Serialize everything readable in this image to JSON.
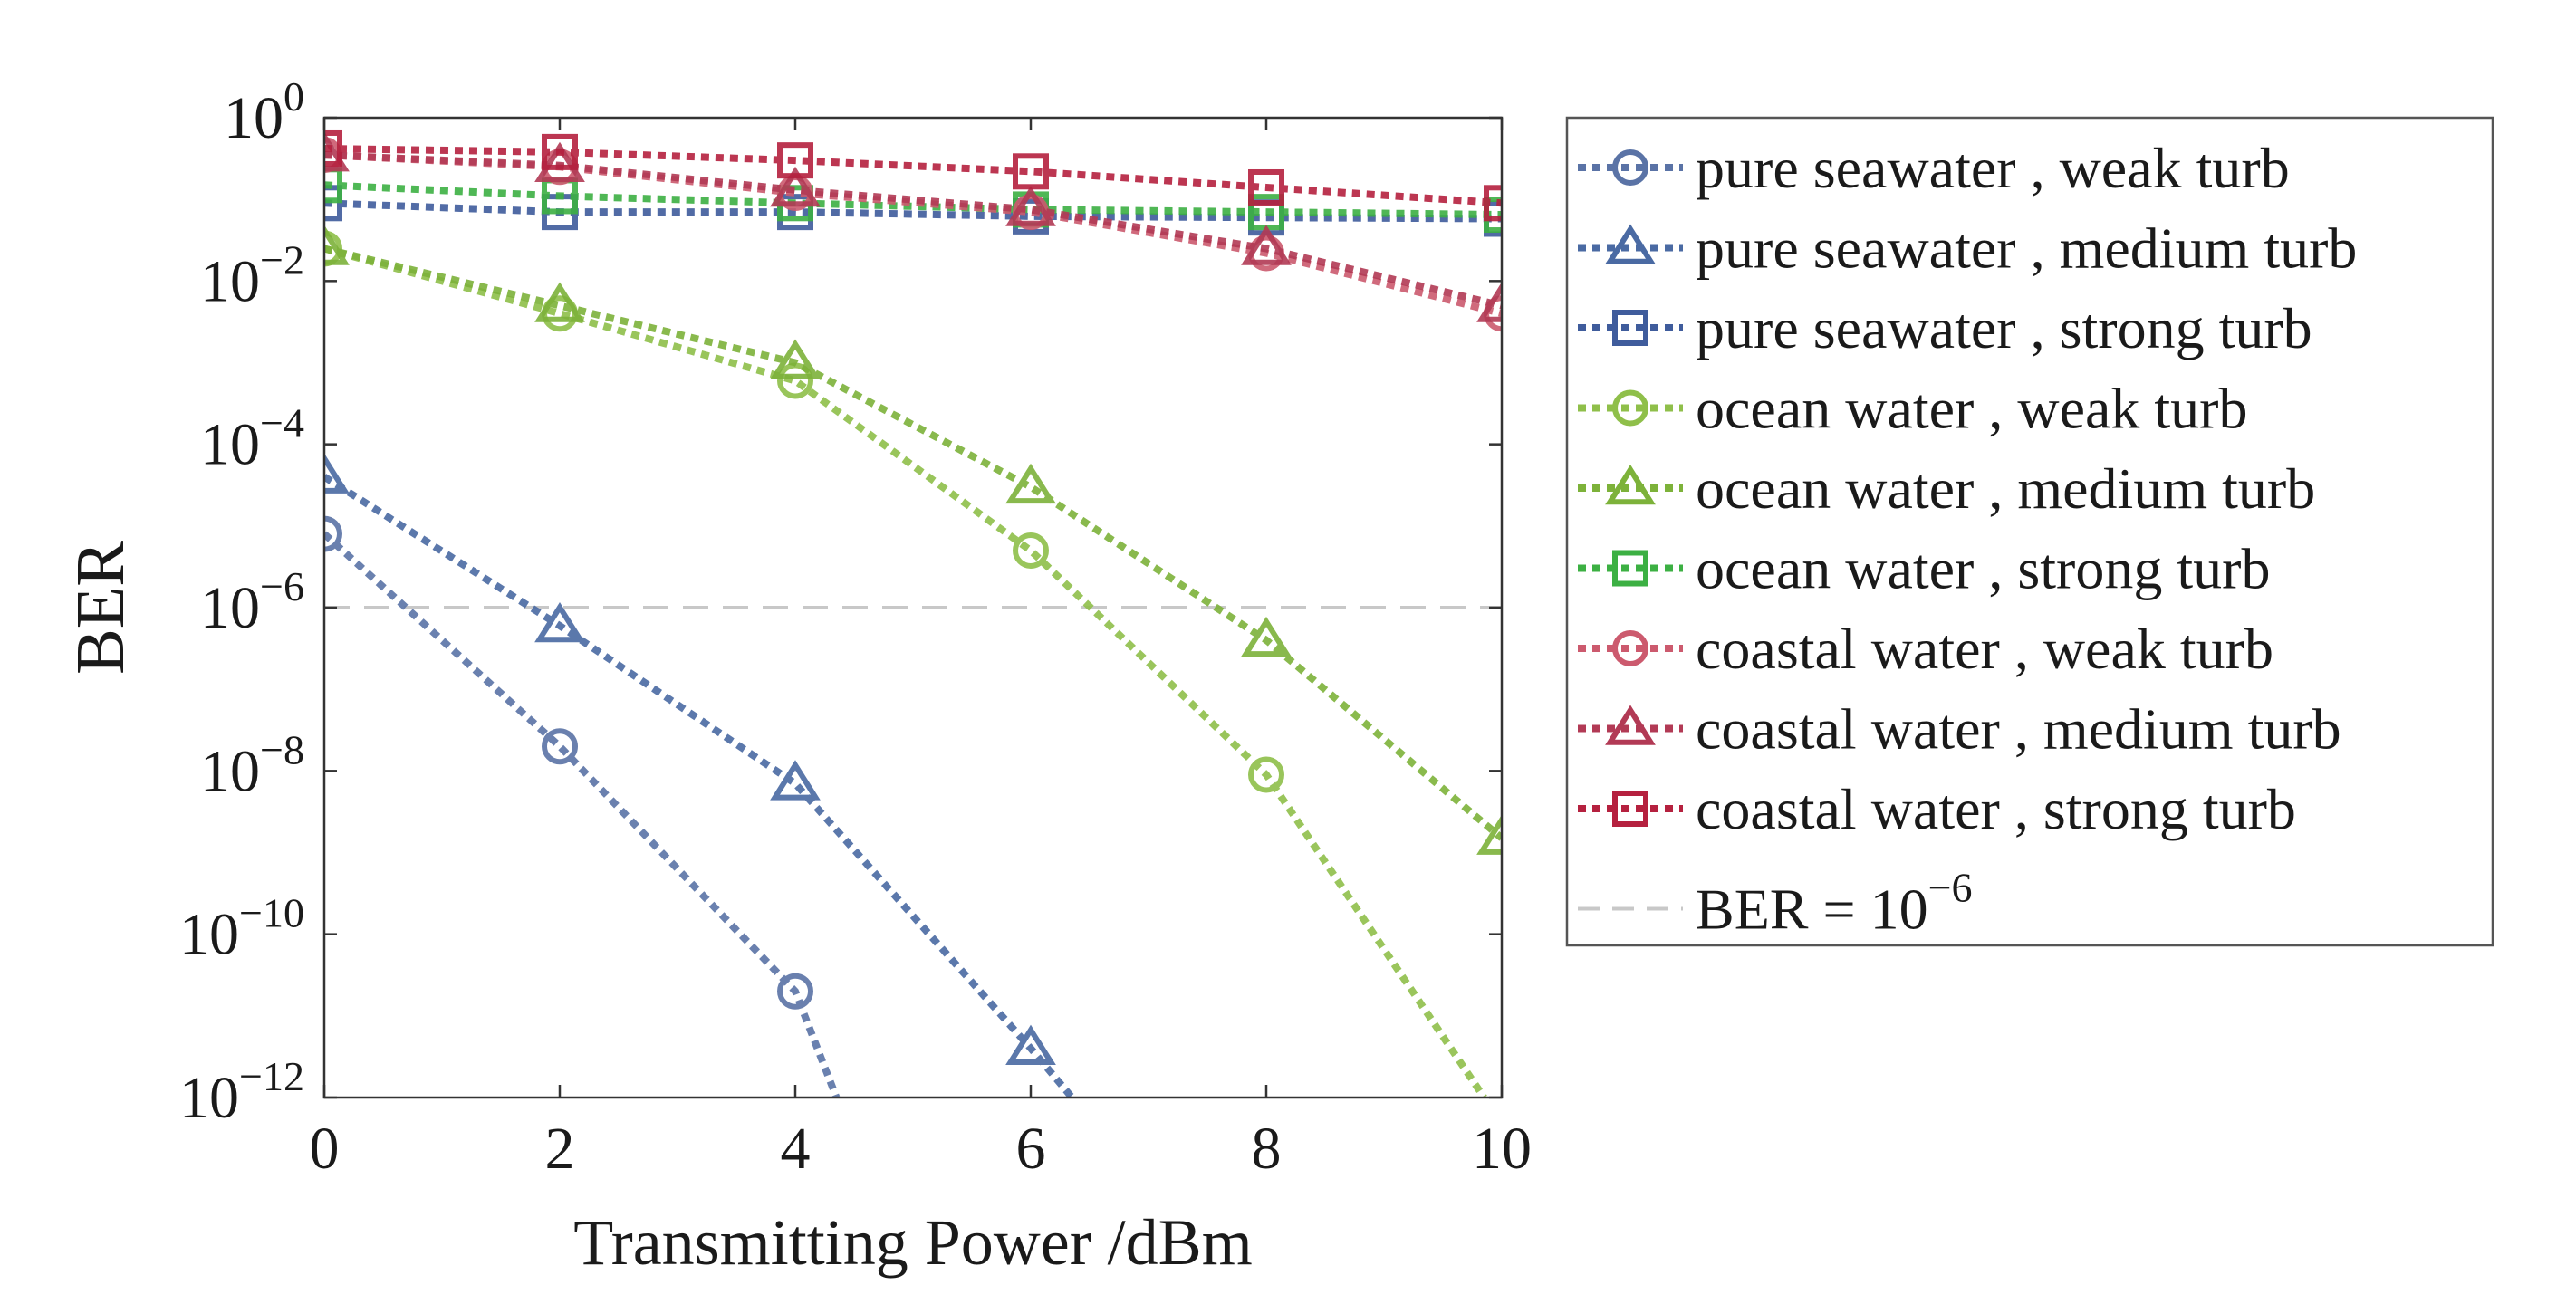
{
  "chart_data": {
    "type": "line",
    "title": "",
    "xlabel": "Transmitting Power /dBm",
    "ylabel": "BER",
    "xlim": [
      0,
      10
    ],
    "ylim": [
      1e-12,
      1
    ],
    "y_scale": "log",
    "x_ticks": [
      "0",
      "2",
      "4",
      "6",
      "8",
      "10"
    ],
    "y_ticks": [
      {
        "base": "10",
        "exp": "0"
      },
      {
        "base": "10",
        "exp": "−2"
      },
      {
        "base": "10",
        "exp": "−4"
      },
      {
        "base": "10",
        "exp": "−6"
      },
      {
        "base": "10",
        "exp": "−8"
      },
      {
        "base": "10",
        "exp": "−10"
      },
      {
        "base": "10",
        "exp": "−12"
      }
    ],
    "legend_position": "outside-right",
    "grid": false,
    "series": [
      {
        "name": "pure seawater , weak turb",
        "color": "#5a73a6",
        "marker": "circle",
        "points": [
          [
            0,
            8e-06
          ],
          [
            2,
            2e-08
          ],
          [
            4,
            2e-11
          ],
          [
            4.35,
            1e-12
          ]
        ]
      },
      {
        "name": "pure seawater , medium turb",
        "color": "#4a6aa3",
        "marker": "triangle",
        "points": [
          [
            0,
            4e-05
          ],
          [
            2,
            6e-07
          ],
          [
            4,
            7e-09
          ],
          [
            6,
            4e-12
          ],
          [
            6.35,
            1e-12
          ]
        ]
      },
      {
        "name": "pure seawater , strong turb",
        "color": "#3f5c9c",
        "marker": "square",
        "points": [
          [
            0,
            0.09
          ],
          [
            2,
            0.07
          ],
          [
            4,
            0.07
          ],
          [
            6,
            0.062
          ],
          [
            8,
            0.06
          ],
          [
            10,
            0.058
          ]
        ]
      },
      {
        "name": "ocean water , weak turb",
        "color": "#8fbf4a",
        "marker": "circle",
        "points": [
          [
            0,
            0.025
          ],
          [
            2,
            0.004
          ],
          [
            4,
            0.0006
          ],
          [
            6,
            5e-06
          ],
          [
            8,
            9e-09
          ],
          [
            9.85,
            1e-12
          ]
        ]
      },
      {
        "name": "ocean water , medium turb",
        "color": "#7db23a",
        "marker": "triangle",
        "points": [
          [
            0,
            0.025
          ],
          [
            2,
            0.005
          ],
          [
            4,
            0.001
          ],
          [
            6,
            3e-05
          ],
          [
            8,
            4e-07
          ],
          [
            10,
            1.5e-09
          ]
        ]
      },
      {
        "name": "ocean water , strong turb",
        "color": "#3cb043",
        "marker": "square",
        "points": [
          [
            0,
            0.15
          ],
          [
            2,
            0.11
          ],
          [
            4,
            0.09
          ],
          [
            6,
            0.075
          ],
          [
            8,
            0.07
          ],
          [
            10,
            0.065
          ]
        ]
      },
      {
        "name": "coastal water , weak turb",
        "color": "#cc5a6e",
        "marker": "circle",
        "points": [
          [
            0,
            0.35
          ],
          [
            2,
            0.25
          ],
          [
            4,
            0.12
          ],
          [
            6,
            0.07
          ],
          [
            8,
            0.022
          ],
          [
            10,
            0.004
          ]
        ]
      },
      {
        "name": "coastal water , medium turb",
        "color": "#b23a55",
        "marker": "triangle",
        "points": [
          [
            0,
            0.35
          ],
          [
            2,
            0.26
          ],
          [
            4,
            0.13
          ],
          [
            6,
            0.075
          ],
          [
            8,
            0.025
          ],
          [
            10,
            0.005
          ]
        ]
      },
      {
        "name": "coastal water , strong turb",
        "color": "#b5213f",
        "marker": "square",
        "points": [
          [
            0,
            0.42
          ],
          [
            2,
            0.38
          ],
          [
            4,
            0.3
          ],
          [
            6,
            0.22
          ],
          [
            8,
            0.14
          ],
          [
            10,
            0.09
          ]
        ]
      }
    ],
    "reference_line": {
      "label_prefix": "BER = 10",
      "label_exp": "−6",
      "value": 1e-06,
      "color": "#c8c8c8"
    }
  }
}
